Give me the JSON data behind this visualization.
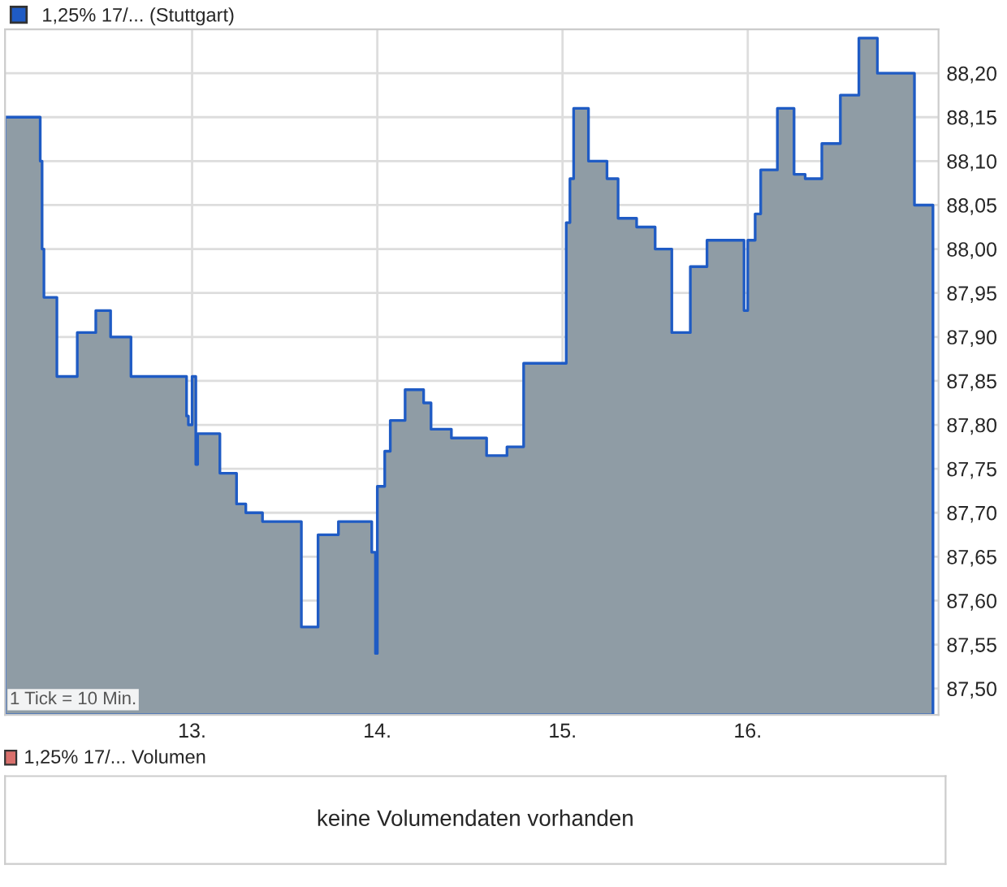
{
  "chart_data": [
    {
      "type": "area",
      "legend": "top left",
      "grid": true,
      "x": [
        11.99,
        12.18,
        12.19,
        12.2,
        12.27,
        12.38,
        12.48,
        12.56,
        12.67,
        12.97,
        12.98,
        13.0,
        13.02,
        13.03,
        13.15,
        13.24,
        13.29,
        13.38,
        13.59,
        13.68,
        13.79,
        13.97,
        13.99,
        14.0,
        14.04,
        14.07,
        14.15,
        14.25,
        14.29,
        14.4,
        14.59,
        14.7,
        14.79,
        15.02,
        15.04,
        15.06,
        15.14,
        15.24,
        15.3,
        15.4,
        15.5,
        15.59,
        15.69,
        15.78,
        15.98,
        16.0,
        16.04,
        16.07,
        16.16,
        16.25,
        16.31,
        16.4,
        16.5,
        16.6,
        16.7,
        16.9,
        17.0
      ],
      "series": [
        {
          "name": "1,25% 17/... (Stuttgart)",
          "color": "#1f5bc4",
          "values": [
            88.15,
            88.1,
            88.0,
            87.945,
            87.855,
            87.905,
            87.93,
            87.9,
            87.855,
            87.81,
            87.8,
            87.855,
            87.755,
            87.79,
            87.745,
            87.71,
            87.7,
            87.69,
            87.57,
            87.675,
            87.69,
            87.655,
            87.54,
            87.73,
            87.77,
            87.805,
            87.84,
            87.825,
            87.795,
            87.785,
            87.765,
            87.775,
            87.87,
            88.03,
            88.08,
            88.16,
            88.1,
            88.08,
            88.035,
            88.025,
            88.0,
            87.905,
            87.98,
            88.01,
            87.93,
            88.01,
            88.04,
            88.09,
            88.16,
            88.085,
            88.08,
            88.12,
            88.175,
            88.24,
            88.2,
            88.05,
            88.03
          ]
        }
      ],
      "xlim": [
        11.99,
        17.03
      ],
      "xticks": [
        {
          "value": 13,
          "label": "13."
        },
        {
          "value": 14,
          "label": "14."
        },
        {
          "value": 15,
          "label": "15."
        },
        {
          "value": 16,
          "label": "16."
        }
      ],
      "ylim": [
        87.47,
        88.25
      ],
      "yticks": [
        {
          "value": 87.5,
          "label": "87,50"
        },
        {
          "value": 87.55,
          "label": "87,55"
        },
        {
          "value": 87.6,
          "label": "87,60"
        },
        {
          "value": 87.65,
          "label": "87,65"
        },
        {
          "value": 87.7,
          "label": "87,70"
        },
        {
          "value": 87.75,
          "label": "87,75"
        },
        {
          "value": 87.8,
          "label": "87,80"
        },
        {
          "value": 87.85,
          "label": "87,85"
        },
        {
          "value": 87.9,
          "label": "87,90"
        },
        {
          "value": 87.95,
          "label": "87,95"
        },
        {
          "value": 88.0,
          "label": "88,00"
        },
        {
          "value": 88.05,
          "label": "88,05"
        },
        {
          "value": 88.1,
          "label": "88,10"
        },
        {
          "value": 88.15,
          "label": "88,15"
        },
        {
          "value": 88.2,
          "label": "88,20"
        }
      ],
      "annotations": [
        "1 Tick = 10 Min."
      ]
    },
    {
      "type": "other",
      "title": "1,25% 17/... Volumen",
      "color": "#d9706c",
      "annotations": [
        "keine Volumendaten vorhanden"
      ]
    }
  ]
}
